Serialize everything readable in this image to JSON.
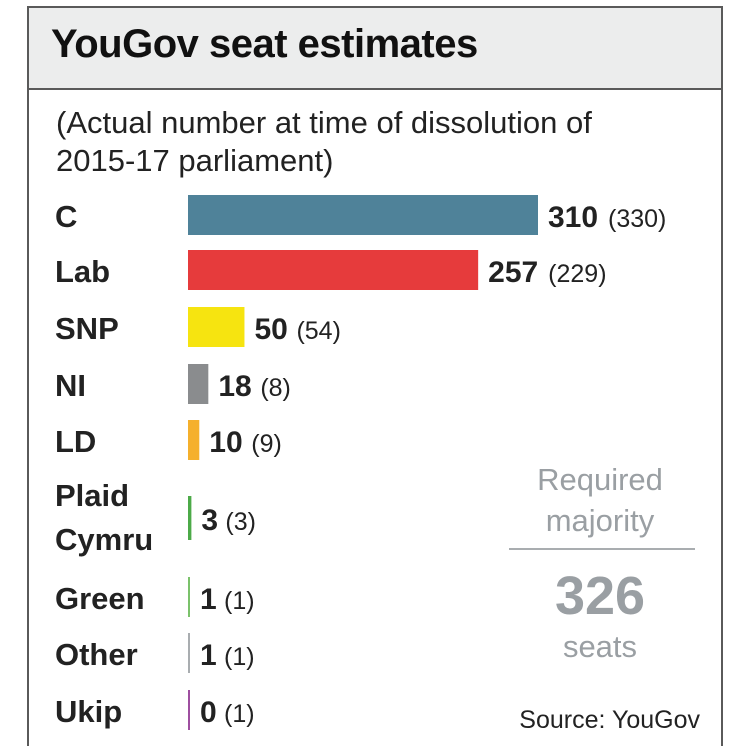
{
  "colors": {
    "C": "#4f8299",
    "Lab": "#e63b3c",
    "SNP": "#f6e410",
    "NI": "#8a8c8e",
    "LD": "#f5b02c",
    "Plaid Cymru": "#4caa48",
    "Green": "#7bc26b",
    "Other": "#a9adb0",
    "Ukip": "#9e4fa0"
  },
  "chart_data": {
    "type": "bar",
    "orientation": "horizontal",
    "title": "YouGov seat estimates",
    "subtitle": "(Actual number at time of dissolution of 2015-17 parliament)",
    "categories": [
      "C",
      "Lab",
      "SNP",
      "NI",
      "LD",
      "Plaid Cymru",
      "Green",
      "Other",
      "Ukip"
    ],
    "values": [
      310,
      257,
      50,
      18,
      10,
      3,
      1,
      1,
      0
    ],
    "previous": [
      "(330)",
      "(229)",
      "(54)",
      "(8)",
      "(9)",
      "(3)",
      "(1)",
      "(1)",
      "(1)"
    ],
    "annotation": {
      "label": [
        "Required",
        "majority"
      ],
      "value": "326",
      "unit": "seats"
    },
    "source": "Source: YouGov",
    "xlim": [
      0,
      330
    ]
  }
}
